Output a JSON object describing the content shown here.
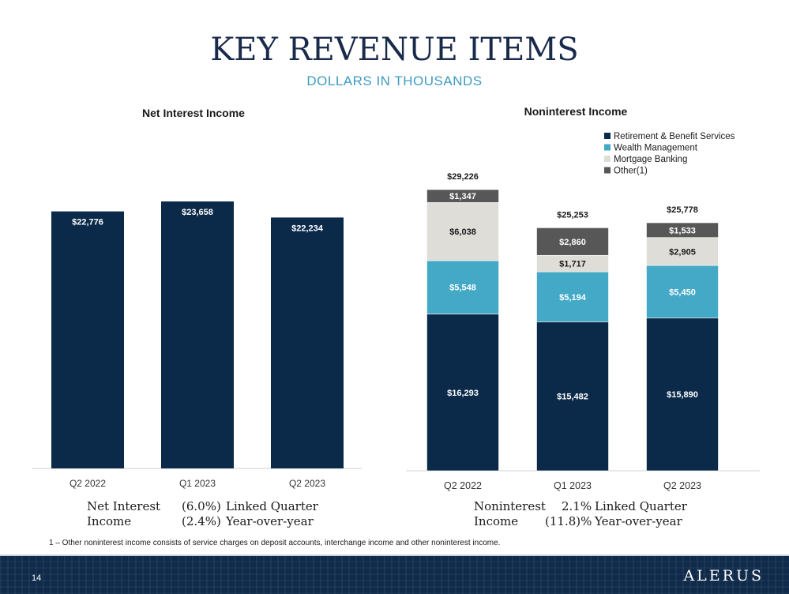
{
  "header": {
    "title": "KEY REVENUE ITEMS",
    "subtitle": "DOLLARS IN THOUSANDS"
  },
  "chart_data": [
    {
      "type": "bar",
      "title": "Net Interest Income",
      "categories": [
        "Q2 2022",
        "Q1 2023",
        "Q2 2023"
      ],
      "values": [
        22776,
        23658,
        22234
      ],
      "data_labels": [
        "$22,776",
        "$23,658",
        "$22,234"
      ],
      "ylim": [
        0,
        28000
      ],
      "color": "#0b2a4a",
      "grid": false
    },
    {
      "type": "bar",
      "stacked": true,
      "title": "Noninterest Income",
      "categories": [
        "Q2 2022",
        "Q1 2023",
        "Q2 2023"
      ],
      "series": [
        {
          "name": "Retirement & Benefit Services",
          "color": "#0b2a4a",
          "label_color": "#ffffff",
          "values": [
            16293,
            15482,
            15890
          ],
          "labels": [
            "$16,293",
            "$15,482",
            "$15,890"
          ]
        },
        {
          "name": "Wealth Management",
          "color": "#43a9c6",
          "label_color": "#ffffff",
          "values": [
            5548,
            5194,
            5450
          ],
          "labels": [
            "$5,548",
            "$5,194",
            "$5,450"
          ]
        },
        {
          "name": "Mortgage Banking",
          "color": "#deddd8",
          "label_color": "#1a1a1a",
          "values": [
            6038,
            1717,
            2905
          ],
          "labels": [
            "$6,038",
            "$1,717",
            "$2,905"
          ]
        },
        {
          "name": "Other(1)",
          "color": "#575757",
          "label_color": "#ffffff",
          "values": [
            1347,
            2860,
            1533
          ],
          "labels": [
            "$1,347",
            "$2,860",
            "$1,533"
          ]
        }
      ],
      "totals": [
        "$29,226",
        "$25,253",
        "$25,778"
      ],
      "ylim": [
        0,
        29226
      ],
      "legend": "top-right",
      "grid": false
    }
  ],
  "summaries": {
    "net_interest": {
      "label_line1": "Net Interest",
      "label_line2": "Income",
      "value1": "(6.0%)",
      "desc1": "Linked Quarter",
      "value2": "(2.4%)",
      "desc2": "Year-over-year"
    },
    "noninterest": {
      "label_line1": "Noninterest",
      "label_line2": "Income",
      "value1": "2.1%",
      "desc1": "Linked Quarter",
      "value2": "(11.8)%",
      "desc2": "Year-over-year"
    }
  },
  "footnote": "1 – Other noninterest income consists of service charges on deposit accounts, interchange income and other noninterest income.",
  "footer": {
    "page_number": "14",
    "logo": "ALERUS"
  }
}
